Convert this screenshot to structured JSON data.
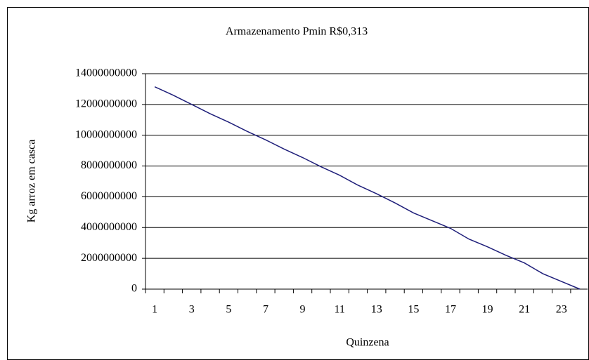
{
  "chart_data": {
    "type": "line",
    "title": "Armazenamento Pmin R$0,313",
    "x_label": "Quinzena",
    "y_label": "Kg arroz em casca",
    "categories": [
      "1",
      null,
      "3",
      null,
      "5",
      null,
      "7",
      null,
      "9",
      null,
      "11",
      null,
      "13",
      null,
      "15",
      null,
      "17",
      null,
      "19",
      null,
      "21",
      null,
      "23",
      null
    ],
    "series": [
      {
        "name": "Pmin R$0,313",
        "color": "#1f1f7a",
        "values": [
          13150000000,
          12600000000,
          12000000000,
          11400000000,
          10850000000,
          10250000000,
          9700000000,
          9100000000,
          8550000000,
          7950000000,
          7400000000,
          6750000000,
          6200000000,
          5600000000,
          4950000000,
          4450000000,
          3950000000,
          3250000000,
          2750000000,
          2200000000,
          1700000000,
          1000000000,
          500000000,
          0
        ]
      }
    ],
    "ylim": [
      0,
      14000000000
    ],
    "yticks": [
      0,
      2000000000,
      4000000000,
      6000000000,
      8000000000,
      10000000000,
      12000000000,
      14000000000
    ],
    "grid": true
  }
}
